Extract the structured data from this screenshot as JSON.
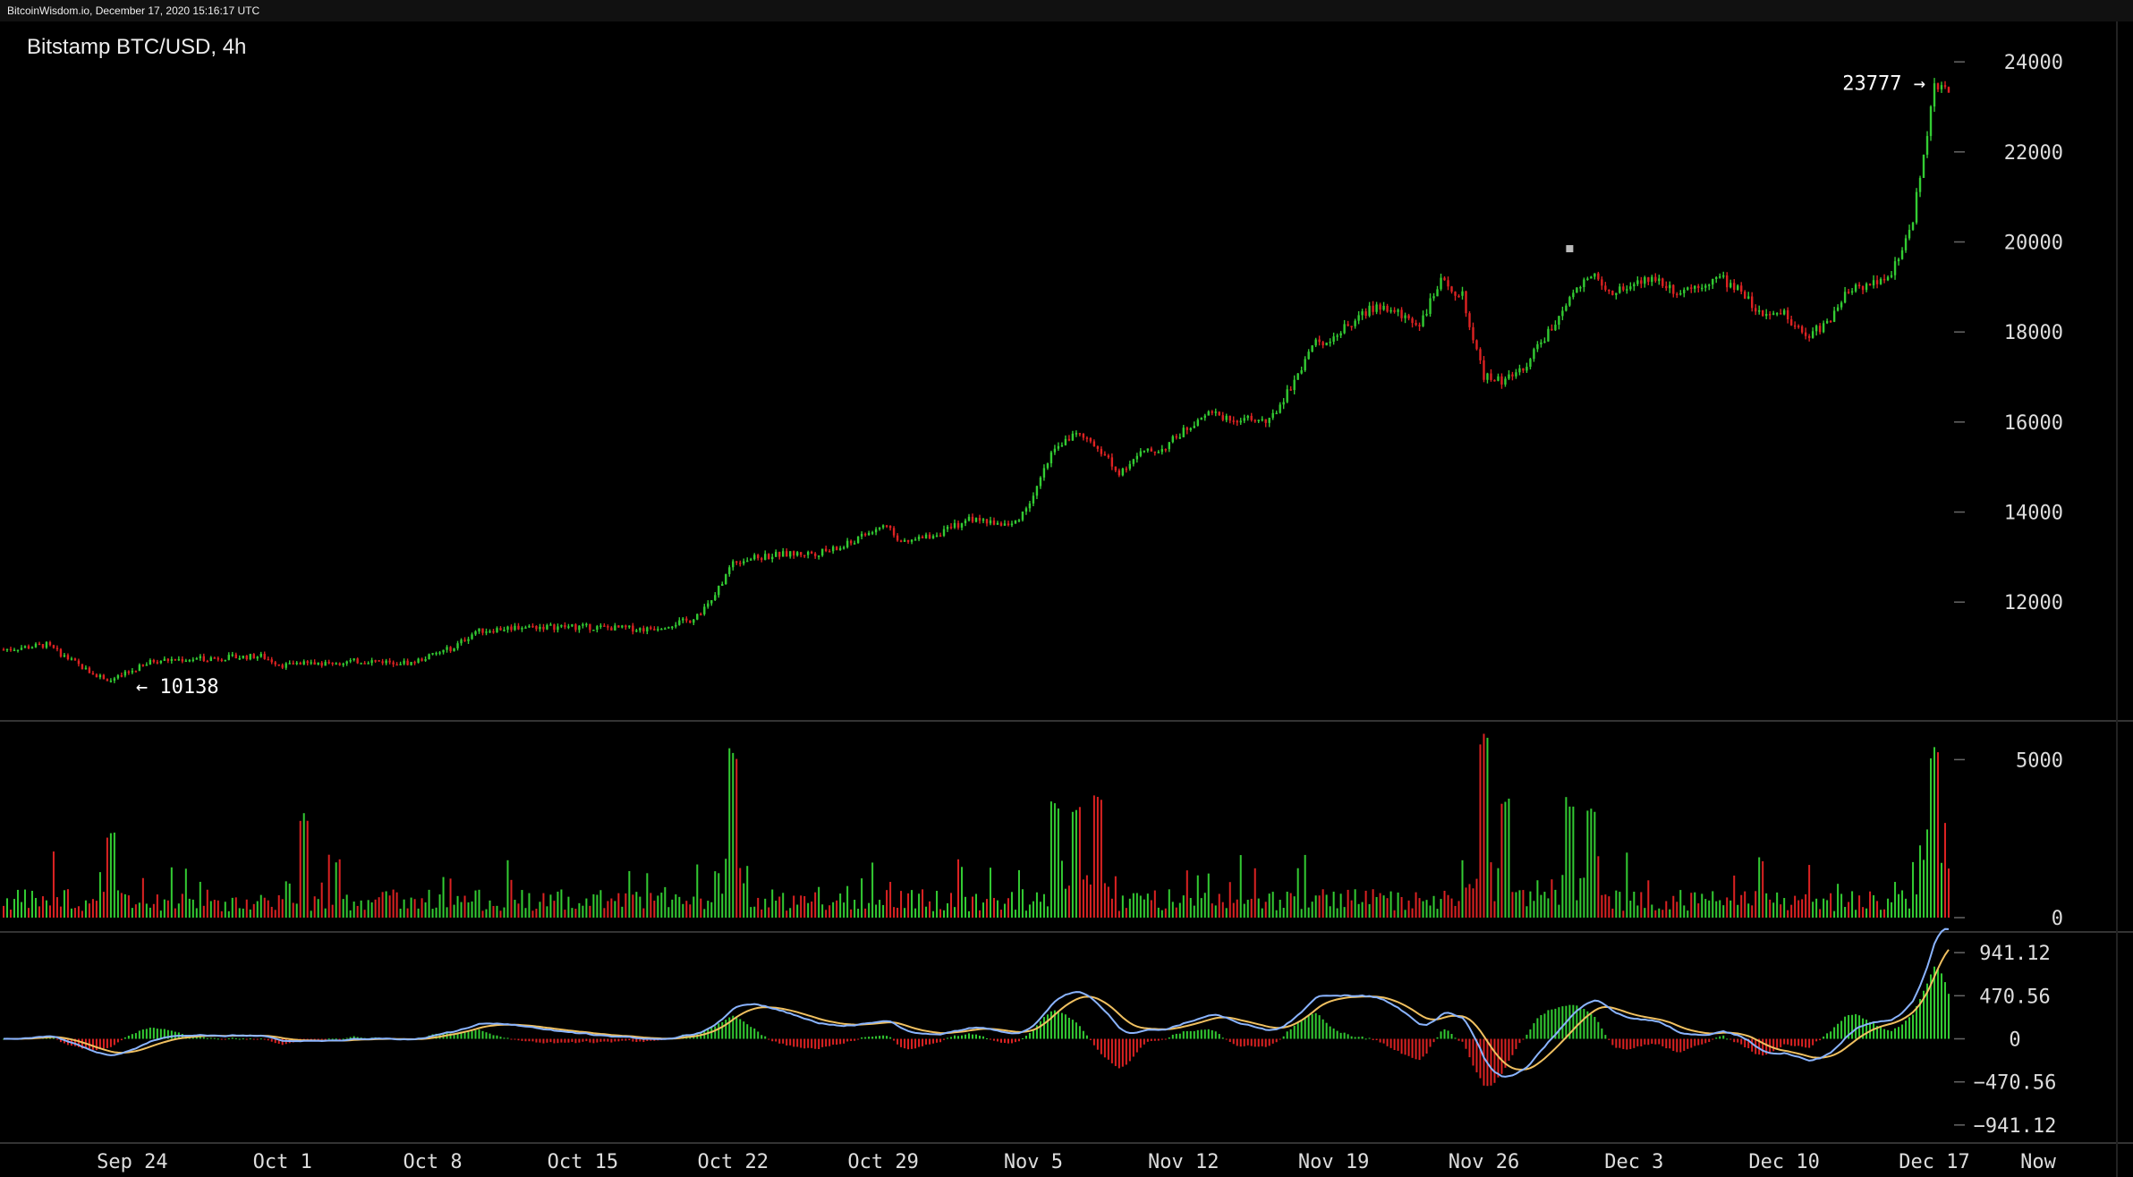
{
  "header": {
    "source_line": "BitcoinWisdom.io, December 17, 2020 15:16:17 UTC"
  },
  "chart_data": {
    "type": "candlestick",
    "title": "Bitstamp BTC/USD, 4h",
    "interval": "4h",
    "x": {
      "start_date": "2020-09-18",
      "end_date": "2020-12-17",
      "tick_labels": [
        "Sep 24",
        "Oct 1",
        "Oct 8",
        "Oct 15",
        "Oct 22",
        "Oct 29",
        "Nov 5",
        "Nov 12",
        "Nov 19",
        "Nov 26",
        "Dec 3",
        "Dec 10",
        "Dec 17",
        "Now"
      ]
    },
    "price_panel": {
      "ylim": [
        9600,
        24500
      ],
      "yticks": [
        12000,
        14000,
        16000,
        18000,
        20000,
        22000,
        24000
      ],
      "tick_labels": [
        "12000",
        "14000",
        "16000",
        "18000",
        "20000",
        "22000",
        "24000"
      ],
      "annotations": {
        "high_label": "23777 →",
        "low_label": "← 10138",
        "high_value": 23777,
        "low_value": 10138
      },
      "anchors": [
        [
          "2020-09-18",
          10950
        ],
        [
          "2020-09-20",
          11050
        ],
        [
          "2020-09-22",
          10450
        ],
        [
          "2020-09-23",
          10250
        ],
        [
          "2020-09-25",
          10700
        ],
        [
          "2020-09-30",
          10800
        ],
        [
          "2020-10-01",
          10600
        ],
        [
          "2020-10-05",
          10700
        ],
        [
          "2020-10-07",
          10650
        ],
        [
          "2020-10-09",
          11000
        ],
        [
          "2020-10-10",
          11350
        ],
        [
          "2020-10-12",
          11450
        ],
        [
          "2020-10-15",
          11450
        ],
        [
          "2020-10-18",
          11400
        ],
        [
          "2020-10-20",
          11600
        ],
        [
          "2020-10-21",
          12000
        ],
        [
          "2020-10-22",
          12900
        ],
        [
          "2020-10-24",
          13050
        ],
        [
          "2020-10-26",
          13100
        ],
        [
          "2020-10-27",
          13200
        ],
        [
          "2020-10-29",
          13700
        ],
        [
          "2020-10-30",
          13300
        ],
        [
          "2020-11-01",
          13600
        ],
        [
          "2020-11-02",
          13850
        ],
        [
          "2020-11-04",
          13700
        ],
        [
          "2020-11-05",
          14300
        ],
        [
          "2020-11-06",
          15500
        ],
        [
          "2020-11-07",
          15700
        ],
        [
          "2020-11-08",
          15450
        ],
        [
          "2020-11-09",
          14900
        ],
        [
          "2020-11-10",
          15300
        ],
        [
          "2020-11-11",
          15400
        ],
        [
          "2020-11-13",
          16200
        ],
        [
          "2020-11-14",
          16100
        ],
        [
          "2020-11-16",
          16000
        ],
        [
          "2020-11-17",
          16800
        ],
        [
          "2020-11-18",
          17700
        ],
        [
          "2020-11-19",
          17900
        ],
        [
          "2020-11-21",
          18600
        ],
        [
          "2020-11-23",
          18200
        ],
        [
          "2020-11-24",
          19100
        ],
        [
          "2020-11-25",
          18800
        ],
        [
          "2020-11-26",
          17000
        ],
        [
          "2020-11-27",
          16900
        ],
        [
          "2020-11-28",
          17300
        ],
        [
          "2020-11-29",
          18000
        ],
        [
          "2020-11-30",
          18700
        ],
        [
          "2020-12-01",
          19300
        ],
        [
          "2020-12-02",
          18900
        ],
        [
          "2020-12-04",
          19200
        ],
        [
          "2020-12-05",
          18900
        ],
        [
          "2020-12-07",
          19200
        ],
        [
          "2020-12-08",
          18900
        ],
        [
          "2020-12-09",
          18300
        ],
        [
          "2020-12-10",
          18400
        ],
        [
          "2020-12-11",
          17900
        ],
        [
          "2020-12-12",
          18200
        ],
        [
          "2020-12-13",
          18900
        ],
        [
          "2020-12-15",
          19300
        ],
        [
          "2020-12-16",
          20500
        ],
        [
          "2020-12-17",
          23400
        ]
      ],
      "marker": {
        "date": "2020-11-30",
        "value": 19850
      }
    },
    "volume_panel": {
      "ylim": [
        0,
        6000
      ],
      "tick_labels": [
        "0",
        "5000"
      ],
      "yticks": [
        0,
        5000
      ],
      "spikes": [
        [
          "2020-10-22",
          5400
        ],
        [
          "2020-09-23",
          2700
        ],
        [
          "2020-10-02",
          3400
        ],
        [
          "2020-11-06",
          3700
        ],
        [
          "2020-11-07",
          3600
        ],
        [
          "2020-11-08",
          4000
        ],
        [
          "2020-11-26",
          5900
        ],
        [
          "2020-11-27",
          3800
        ],
        [
          "2020-11-30",
          3900
        ],
        [
          "2020-12-01",
          3600
        ],
        [
          "2020-12-17",
          5400
        ]
      ]
    },
    "macd_panel": {
      "ylim": [
        -1050,
        1050
      ],
      "yticks": [
        -941.12,
        -470.56,
        0,
        470.56,
        941.12
      ],
      "tick_labels": [
        "−941.12",
        "−470.56",
        "0",
        "470.56",
        "941.12"
      ]
    },
    "colors": {
      "up": "#33cc33",
      "down": "#dd2222",
      "macd_line": "#ffffff",
      "signal_line": "#f0c060",
      "macd_line_2": "#8ab4ff",
      "grid_divider": "#333333"
    }
  }
}
